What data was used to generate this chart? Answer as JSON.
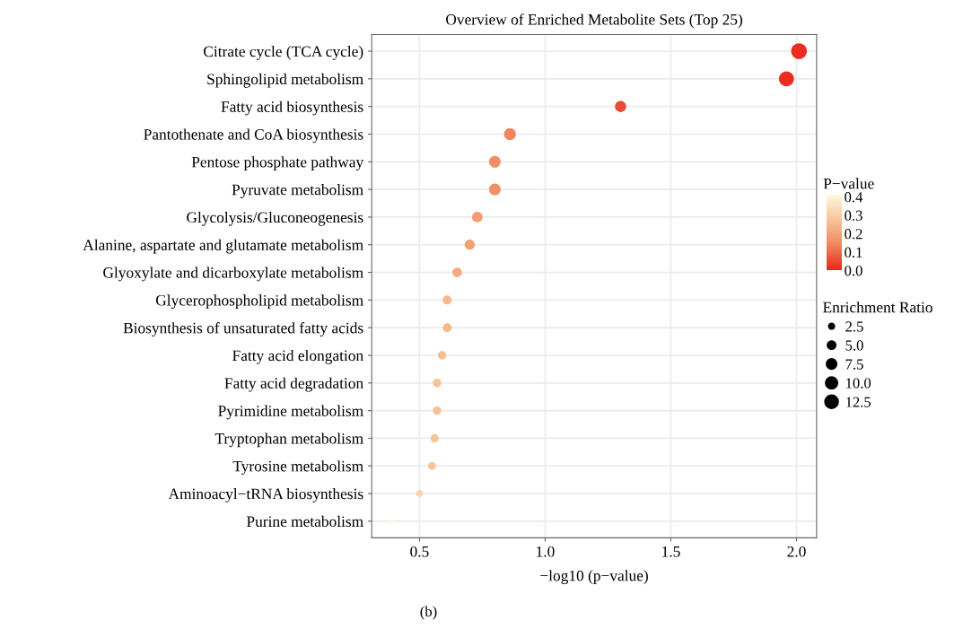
{
  "chart_data": {
    "type": "bubble",
    "title": "Overview of Enriched Metabolite Sets (Top 25)",
    "xlabel": "−log10 (p−value)",
    "categories": [
      "Citrate cycle (TCA cycle)",
      "Sphingolipid metabolism",
      "Fatty acid biosynthesis",
      "Pantothenate and CoA biosynthesis",
      "Pentose phosphate pathway",
      "Pyruvate metabolism",
      "Glycolysis/Gluconeogenesis",
      "Alanine, aspartate and glutamate metabolism",
      "Glyoxylate and dicarboxylate metabolism",
      "Glycerophospholipid metabolism",
      "Biosynthesis of unsaturated fatty acids",
      "Fatty acid elongation",
      "Fatty acid degradation",
      "Pyrimidine metabolism",
      "Tryptophan metabolism",
      "Tyrosine metabolism",
      "Aminoacyl−tRNA biosynthesis",
      "Purine metabolism"
    ],
    "orientation": "horizontal",
    "values": [
      2.01,
      1.96,
      1.3,
      0.86,
      0.8,
      0.8,
      0.73,
      0.7,
      0.65,
      0.61,
      0.61,
      0.59,
      0.57,
      0.57,
      0.56,
      0.55,
      0.5,
      0.39
    ],
    "sizes": [
      17,
      15.5,
      8.5,
      9.7,
      9.3,
      9.3,
      7.7,
      7,
      6.2,
      5.5,
      5.5,
      4.9,
      4.9,
      4.9,
      4.6,
      4.3,
      3.5,
      1.2
    ],
    "cvalues": [
      0.01,
      0.011,
      0.05,
      0.14,
      0.16,
      0.16,
      0.19,
      0.2,
      0.22,
      0.25,
      0.25,
      0.26,
      0.27,
      0.27,
      0.28,
      0.28,
      0.32,
      0.41
    ],
    "clabel": "P−value",
    "clim": [
      0,
      0.41
    ],
    "cticks": [
      {
        "value": 0,
        "label": "0.0"
      },
      0.1,
      0.2,
      0.3,
      0.4
    ],
    "legend_title": "Enrichment Ratio",
    "size_legend": [
      2.5,
      {
        "value": 5,
        "label": "5.0"
      },
      7.5,
      {
        "value": 10,
        "label": "10.0"
      },
      12.5
    ],
    "xlim": [
      0.31,
      2.08
    ],
    "xticks": [
      {
        "value": 0.5,
        "label": "0.5"
      },
      {
        "value": 1.0,
        "label": "1.0"
      },
      {
        "value": 1.5,
        "label": "1.5"
      },
      {
        "value": 2.0,
        "label": "2.0"
      }
    ],
    "grid": true,
    "marker": "circle",
    "annotations": [
      "(b)"
    ]
  }
}
